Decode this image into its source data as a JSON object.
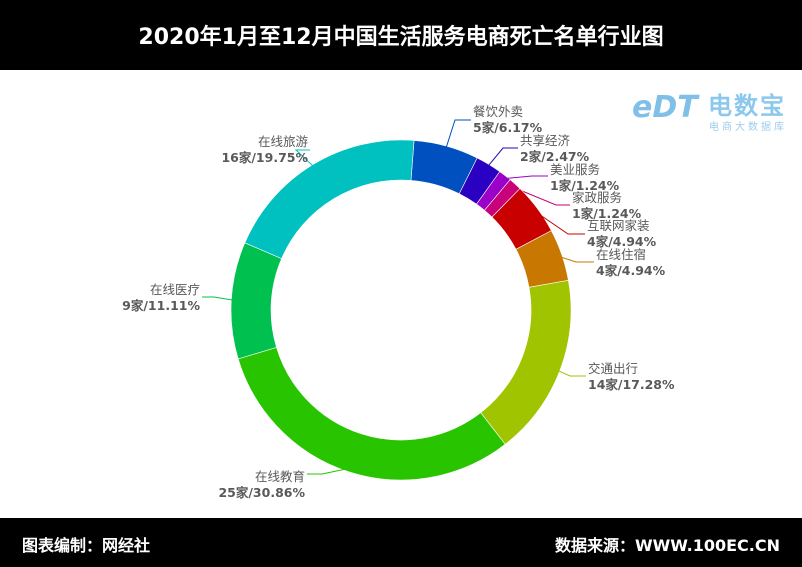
{
  "title": "2020年1月至12月中国生活服务电商死亡名单行业图",
  "footer": {
    "left": "图表编制：网经社",
    "right": "数据来源：WWW.100EC.CN"
  },
  "logo": {
    "mark": "eDT",
    "name": "电数宝",
    "sub": "电商大数据库"
  },
  "chart_data": {
    "type": "pie",
    "variant": "donut",
    "title": "2020年1月至12月中国生活服务电商死亡名单行业图",
    "unit": "家",
    "total": 81,
    "slices": [
      {
        "name": "餐饮外卖",
        "value": 5,
        "label": "5家/6.17%",
        "color": "#0050c0"
      },
      {
        "name": "共享经济",
        "value": 2,
        "label": "2家/2.47%",
        "color": "#2a00c2"
      },
      {
        "name": "美业服务",
        "value": 1,
        "label": "1家/1.24%",
        "color": "#9a00c8"
      },
      {
        "name": "家政服务",
        "value": 1,
        "label": "1家/1.24%",
        "color": "#c8007a"
      },
      {
        "name": "互联网家装",
        "value": 4,
        "label": "4家/4.94%",
        "color": "#c80000"
      },
      {
        "name": "在线住宿",
        "value": 4,
        "label": "4家/4.94%",
        "color": "#c87800"
      },
      {
        "name": "交通出行",
        "value": 14,
        "label": "14家/17.28%",
        "color": "#a0c400"
      },
      {
        "name": "在线教育",
        "value": 25,
        "label": "25家/30.86%",
        "color": "#28c400"
      },
      {
        "name": "在线医疗",
        "value": 9,
        "label": "9家/11.11%",
        "color": "#00c050"
      },
      {
        "name": "在线旅游",
        "value": 16,
        "label": "16家/19.75%",
        "color": "#00c0c0"
      }
    ]
  }
}
